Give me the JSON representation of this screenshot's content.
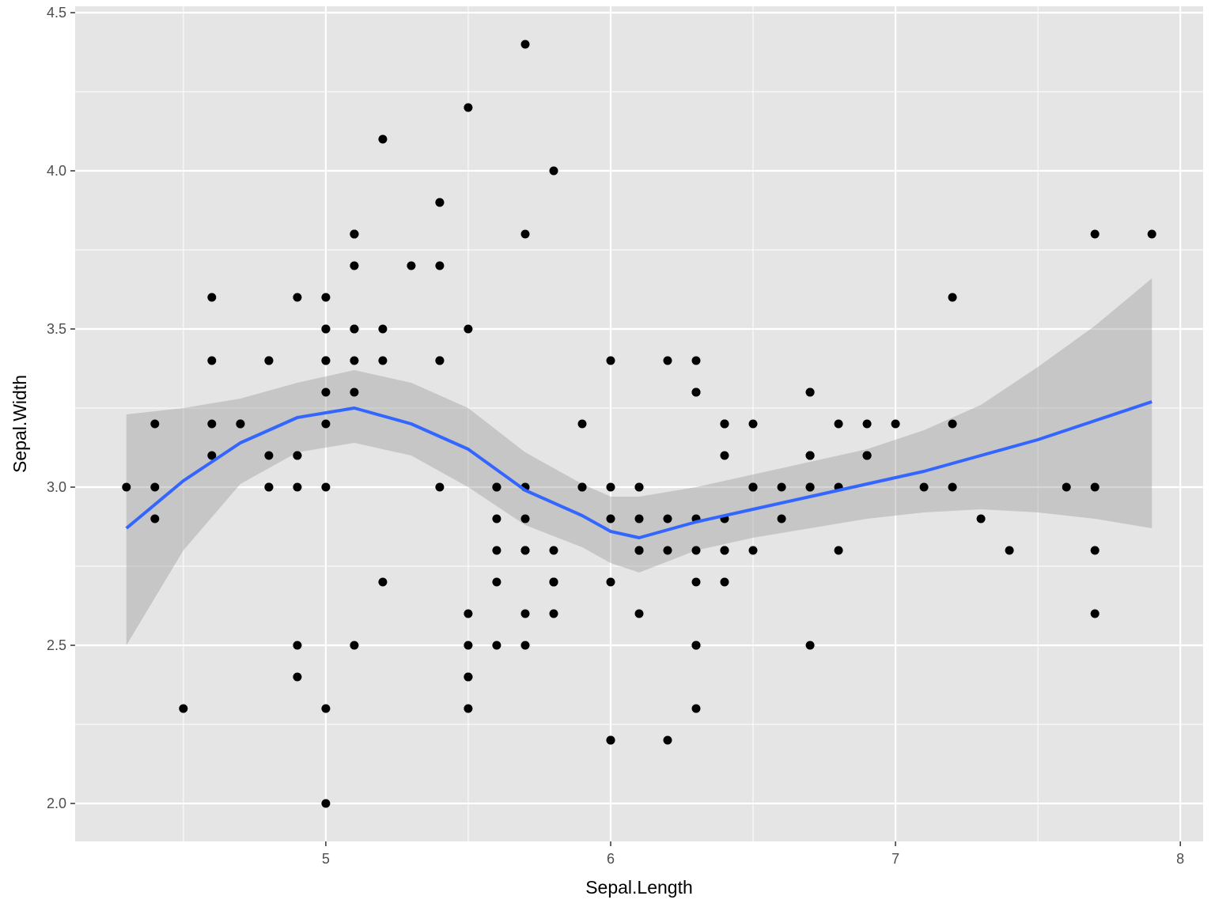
{
  "chart_data": {
    "type": "scatter",
    "xlabel": "Sepal.Length",
    "ylabel": "Sepal.Width",
    "xlim": [
      4.12,
      8.08
    ],
    "ylim": [
      1.88,
      4.52
    ],
    "x_ticks": [
      5,
      6,
      7,
      8
    ],
    "x_tick_labels": [
      "5",
      "6",
      "7",
      "8"
    ],
    "y_ticks": [
      2.0,
      2.5,
      3.0,
      3.5,
      4.0,
      4.5
    ],
    "y_tick_labels": [
      "2.0",
      "2.5",
      "3.0",
      "3.5",
      "4.0",
      "4.5"
    ],
    "grid": true,
    "colors": {
      "panel": "#e5e5e5",
      "grid": "#ffffff",
      "points": "#000000",
      "smooth_line": "#3366ff",
      "confidence_band": "#999999"
    },
    "points": [
      [
        5.1,
        3.5
      ],
      [
        4.9,
        3.0
      ],
      [
        4.7,
        3.2
      ],
      [
        4.6,
        3.1
      ],
      [
        5.0,
        3.6
      ],
      [
        5.4,
        3.9
      ],
      [
        4.6,
        3.4
      ],
      [
        5.0,
        3.4
      ],
      [
        4.4,
        2.9
      ],
      [
        4.9,
        3.1
      ],
      [
        5.4,
        3.7
      ],
      [
        4.8,
        3.4
      ],
      [
        4.8,
        3.0
      ],
      [
        4.3,
        3.0
      ],
      [
        5.8,
        4.0
      ],
      [
        5.7,
        4.4
      ],
      [
        5.4,
        3.9
      ],
      [
        5.1,
        3.5
      ],
      [
        5.7,
        3.8
      ],
      [
        5.1,
        3.8
      ],
      [
        5.4,
        3.4
      ],
      [
        5.1,
        3.7
      ],
      [
        4.6,
        3.6
      ],
      [
        5.1,
        3.3
      ],
      [
        4.8,
        3.4
      ],
      [
        5.0,
        3.0
      ],
      [
        5.0,
        3.4
      ],
      [
        5.2,
        3.5
      ],
      [
        5.2,
        3.4
      ],
      [
        4.7,
        3.2
      ],
      [
        4.8,
        3.1
      ],
      [
        5.4,
        3.4
      ],
      [
        5.2,
        4.1
      ],
      [
        5.5,
        4.2
      ],
      [
        4.9,
        3.1
      ],
      [
        5.0,
        3.2
      ],
      [
        5.5,
        3.5
      ],
      [
        4.9,
        3.6
      ],
      [
        4.4,
        3.0
      ],
      [
        5.1,
        3.4
      ],
      [
        5.0,
        3.5
      ],
      [
        4.5,
        2.3
      ],
      [
        4.4,
        3.2
      ],
      [
        5.0,
        3.5
      ],
      [
        5.1,
        3.8
      ],
      [
        4.8,
        3.0
      ],
      [
        5.1,
        3.8
      ],
      [
        4.6,
        3.2
      ],
      [
        5.3,
        3.7
      ],
      [
        5.0,
        3.3
      ],
      [
        7.0,
        3.2
      ],
      [
        6.4,
        3.2
      ],
      [
        6.9,
        3.1
      ],
      [
        5.5,
        2.3
      ],
      [
        6.5,
        2.8
      ],
      [
        5.7,
        2.8
      ],
      [
        6.3,
        3.3
      ],
      [
        4.9,
        2.4
      ],
      [
        6.6,
        2.9
      ],
      [
        5.2,
        2.7
      ],
      [
        5.0,
        2.0
      ],
      [
        5.9,
        3.0
      ],
      [
        6.0,
        2.2
      ],
      [
        6.1,
        2.9
      ],
      [
        5.6,
        2.9
      ],
      [
        6.7,
        3.1
      ],
      [
        5.6,
        3.0
      ],
      [
        5.8,
        2.7
      ],
      [
        6.2,
        2.2
      ],
      [
        5.6,
        2.5
      ],
      [
        5.9,
        3.2
      ],
      [
        6.1,
        2.8
      ],
      [
        6.3,
        2.5
      ],
      [
        6.1,
        2.8
      ],
      [
        6.4,
        2.9
      ],
      [
        6.6,
        3.0
      ],
      [
        6.8,
        2.8
      ],
      [
        6.7,
        3.0
      ],
      [
        6.0,
        2.9
      ],
      [
        5.7,
        2.6
      ],
      [
        5.5,
        2.4
      ],
      [
        5.5,
        2.4
      ],
      [
        5.8,
        2.7
      ],
      [
        6.0,
        2.7
      ],
      [
        5.4,
        3.0
      ],
      [
        6.0,
        3.4
      ],
      [
        6.7,
        3.1
      ],
      [
        6.3,
        2.3
      ],
      [
        5.6,
        3.0
      ],
      [
        5.5,
        2.5
      ],
      [
        5.5,
        2.6
      ],
      [
        6.1,
        3.0
      ],
      [
        5.8,
        2.6
      ],
      [
        5.0,
        2.3
      ],
      [
        5.6,
        2.7
      ],
      [
        5.7,
        3.0
      ],
      [
        5.7,
        2.9
      ],
      [
        6.2,
        2.9
      ],
      [
        5.1,
        2.5
      ],
      [
        5.7,
        2.8
      ],
      [
        6.3,
        3.3
      ],
      [
        5.8,
        2.7
      ],
      [
        7.1,
        3.0
      ],
      [
        6.3,
        2.9
      ],
      [
        6.5,
        3.0
      ],
      [
        7.6,
        3.0
      ],
      [
        4.9,
        2.5
      ],
      [
        7.3,
        2.9
      ],
      [
        6.7,
        2.5
      ],
      [
        7.2,
        3.6
      ],
      [
        6.5,
        3.2
      ],
      [
        6.4,
        2.7
      ],
      [
        6.8,
        3.0
      ],
      [
        5.7,
        2.5
      ],
      [
        5.8,
        2.8
      ],
      [
        6.4,
        3.2
      ],
      [
        6.5,
        3.0
      ],
      [
        7.7,
        3.8
      ],
      [
        7.7,
        2.6
      ],
      [
        6.0,
        2.2
      ],
      [
        6.9,
        3.2
      ],
      [
        5.6,
        2.8
      ],
      [
        7.7,
        2.8
      ],
      [
        6.3,
        2.7
      ],
      [
        6.7,
        3.3
      ],
      [
        7.2,
        3.2
      ],
      [
        6.2,
        2.8
      ],
      [
        6.1,
        3.0
      ],
      [
        6.4,
        2.8
      ],
      [
        7.2,
        3.0
      ],
      [
        7.4,
        2.8
      ],
      [
        7.9,
        3.8
      ],
      [
        6.4,
        2.8
      ],
      [
        6.3,
        2.8
      ],
      [
        6.1,
        2.6
      ],
      [
        7.7,
        3.0
      ],
      [
        6.3,
        3.4
      ],
      [
        6.4,
        3.1
      ],
      [
        6.0,
        3.0
      ],
      [
        6.9,
        3.1
      ],
      [
        6.7,
        3.1
      ],
      [
        6.9,
        3.1
      ],
      [
        5.8,
        2.7
      ],
      [
        6.8,
        3.2
      ],
      [
        6.7,
        3.3
      ],
      [
        6.7,
        3.0
      ],
      [
        6.3,
        2.5
      ],
      [
        6.5,
        3.0
      ],
      [
        6.2,
        3.4
      ],
      [
        5.9,
        3.0
      ]
    ],
    "smooth": {
      "method": "loess",
      "x": [
        4.3,
        4.5,
        4.7,
        4.9,
        5.1,
        5.3,
        5.5,
        5.7,
        5.9,
        6.0,
        6.1,
        6.3,
        6.5,
        6.7,
        6.9,
        7.1,
        7.3,
        7.5,
        7.7,
        7.9
      ],
      "y": [
        2.87,
        3.02,
        3.14,
        3.22,
        3.25,
        3.2,
        3.12,
        2.99,
        2.91,
        2.86,
        2.84,
        2.89,
        2.93,
        2.97,
        3.01,
        3.05,
        3.1,
        3.15,
        3.21,
        3.27
      ],
      "lower": [
        2.5,
        2.8,
        3.01,
        3.11,
        3.14,
        3.1,
        3.0,
        2.88,
        2.81,
        2.76,
        2.73,
        2.8,
        2.84,
        2.87,
        2.9,
        2.92,
        2.93,
        2.92,
        2.9,
        2.87
      ],
      "upper": [
        3.23,
        3.25,
        3.28,
        3.33,
        3.37,
        3.33,
        3.25,
        3.11,
        3.01,
        2.97,
        2.97,
        3.0,
        3.04,
        3.08,
        3.12,
        3.18,
        3.26,
        3.38,
        3.51,
        3.66
      ]
    }
  }
}
